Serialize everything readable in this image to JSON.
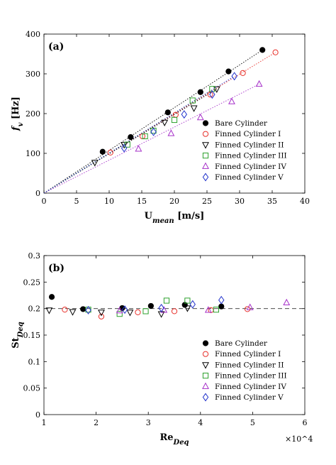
{
  "chart_data": [
    {
      "type": "scatter",
      "panel_label": "(a)",
      "xlabel": "U_mean [m/s]",
      "ylabel": "f_v [Hz]",
      "xlabel_main": "U",
      "xlabel_sub": "mean",
      "xlabel_unit": " [m/s]",
      "ylabel_main": "f",
      "ylabel_sub": "v",
      "ylabel_unit": " [Hz]",
      "xlim": [
        0,
        40
      ],
      "ylim": [
        0,
        400
      ],
      "xticks": [
        0,
        5,
        10,
        15,
        20,
        25,
        30,
        35,
        40
      ],
      "yticks": [
        0,
        100,
        200,
        300,
        400
      ],
      "grid": false,
      "legend_position": "right",
      "series": [
        {
          "name": "Bare Cylinder",
          "marker": "filled-circle",
          "color": "#000000",
          "points": [
            [
              9,
              104
            ],
            [
              13.3,
              141
            ],
            [
              19,
              203
            ],
            [
              24,
              254
            ],
            [
              28.3,
              306
            ],
            [
              33.5,
              360
            ]
          ],
          "fit": [
            [
              0,
              0
            ],
            [
              33.5,
              360
            ]
          ]
        },
        {
          "name": "Finned Cylinder I",
          "marker": "circle",
          "color": "#e8302a",
          "points": [
            [
              10.2,
              102
            ],
            [
              15.1,
              143
            ],
            [
              20.2,
              197
            ],
            [
              25.5,
              248
            ],
            [
              30.5,
              302
            ],
            [
              35.5,
              354
            ]
          ],
          "fit": [
            [
              0,
              0
            ],
            [
              35.5,
              354
            ]
          ]
        },
        {
          "name": "Finned Cylinder II",
          "marker": "triangle-down",
          "color": "#000000",
          "points": [
            [
              7.8,
              77
            ],
            [
              12.3,
              122
            ],
            [
              18.5,
              178
            ],
            [
              23,
              214
            ],
            [
              26.5,
              262
            ]
          ],
          "fit": [
            [
              0,
              0
            ],
            [
              26.5,
              262
            ]
          ]
        },
        {
          "name": "Finned Cylinder III",
          "marker": "square",
          "color": "#2ca02c",
          "points": [
            [
              12.8,
              122
            ],
            [
              15.5,
              143
            ],
            [
              16.8,
              157
            ],
            [
              20,
              184
            ],
            [
              22.8,
              233
            ],
            [
              25.8,
              262
            ]
          ],
          "fit": [
            [
              0,
              0
            ],
            [
              26,
              262
            ]
          ]
        },
        {
          "name": "Finned Cylinder IV",
          "marker": "triangle-up",
          "color": "#a630c9",
          "points": [
            [
              14.5,
              111
            ],
            [
              19.5,
              150
            ],
            [
              24,
              190
            ],
            [
              28.8,
              230
            ],
            [
              33,
              274
            ]
          ],
          "fit": [
            [
              0,
              0
            ],
            [
              33,
              274
            ]
          ]
        },
        {
          "name": "Finned Cylinder V",
          "marker": "diamond",
          "color": "#2233cc",
          "points": [
            [
              12.3,
              113
            ],
            [
              16.8,
              154
            ],
            [
              21.5,
              198
            ],
            [
              25.8,
              248
            ],
            [
              29.2,
              294
            ]
          ],
          "fit": [
            [
              0,
              0
            ],
            [
              29.2,
              294
            ]
          ]
        }
      ]
    },
    {
      "type": "scatter",
      "panel_label": "(b)",
      "xlabel": "Re_Deq",
      "ylabel": "St_Deq",
      "xlabel_main": "Re",
      "xlabel_sub": "Deq",
      "xlabel_unit": "",
      "ylabel_main": "St",
      "ylabel_sub": "Deq",
      "ylabel_unit": "",
      "x_multiplier": "×10^4",
      "xlim": [
        1,
        6
      ],
      "ylim": [
        0,
        0.3
      ],
      "xticks": [
        1,
        2,
        3,
        4,
        5,
        6
      ],
      "yticks": [
        0,
        0.05,
        0.1,
        0.15,
        0.2,
        0.25,
        0.3
      ],
      "yticklabels": [
        "0",
        "0.05",
        "0.1",
        "0.15",
        "0.2",
        "0.25",
        "0.3"
      ],
      "reference_line": 0.2,
      "grid": false,
      "legend_position": "bottom-right",
      "series": [
        {
          "name": "Bare Cylinder",
          "marker": "filled-circle",
          "color": "#000000",
          "points": [
            [
              1.15,
              0.222
            ],
            [
              1.75,
              0.199
            ],
            [
              2.5,
              0.201
            ],
            [
              3.05,
              0.205
            ],
            [
              3.7,
              0.207
            ],
            [
              4.4,
              0.204
            ]
          ]
        },
        {
          "name": "Finned Cylinder I",
          "marker": "circle",
          "color": "#e8302a",
          "points": [
            [
              1.4,
              0.198
            ],
            [
              2.1,
              0.185
            ],
            [
              2.8,
              0.193
            ],
            [
              3.5,
              0.195
            ],
            [
              4.2,
              0.197
            ],
            [
              4.9,
              0.199
            ]
          ]
        },
        {
          "name": "Finned Cylinder II",
          "marker": "triangle-down",
          "color": "#000000",
          "points": [
            [
              1.1,
              0.197
            ],
            [
              1.55,
              0.194
            ],
            [
              2.1,
              0.193
            ],
            [
              2.65,
              0.193
            ],
            [
              3.25,
              0.19
            ],
            [
              3.75,
              0.201
            ]
          ]
        },
        {
          "name": "Finned Cylinder III",
          "marker": "square",
          "color": "#2ca02c",
          "points": [
            [
              1.85,
              0.198
            ],
            [
              2.45,
              0.19
            ],
            [
              2.95,
              0.195
            ],
            [
              3.35,
              0.215
            ],
            [
              3.75,
              0.215
            ],
            [
              4.3,
              0.198
            ]
          ]
        },
        {
          "name": "Finned Cylinder IV",
          "marker": "triangle-up",
          "color": "#a630c9",
          "points": [
            [
              2.45,
              0.196
            ],
            [
              3.3,
              0.197
            ],
            [
              4.15,
              0.197
            ],
            [
              4.95,
              0.202
            ],
            [
              5.65,
              0.211
            ]
          ]
        },
        {
          "name": "Finned Cylinder V",
          "marker": "diamond",
          "color": "#2233cc",
          "points": [
            [
              1.85,
              0.197
            ],
            [
              2.55,
              0.198
            ],
            [
              3.25,
              0.201
            ],
            [
              3.85,
              0.208
            ],
            [
              4.4,
              0.216
            ]
          ]
        }
      ]
    }
  ]
}
